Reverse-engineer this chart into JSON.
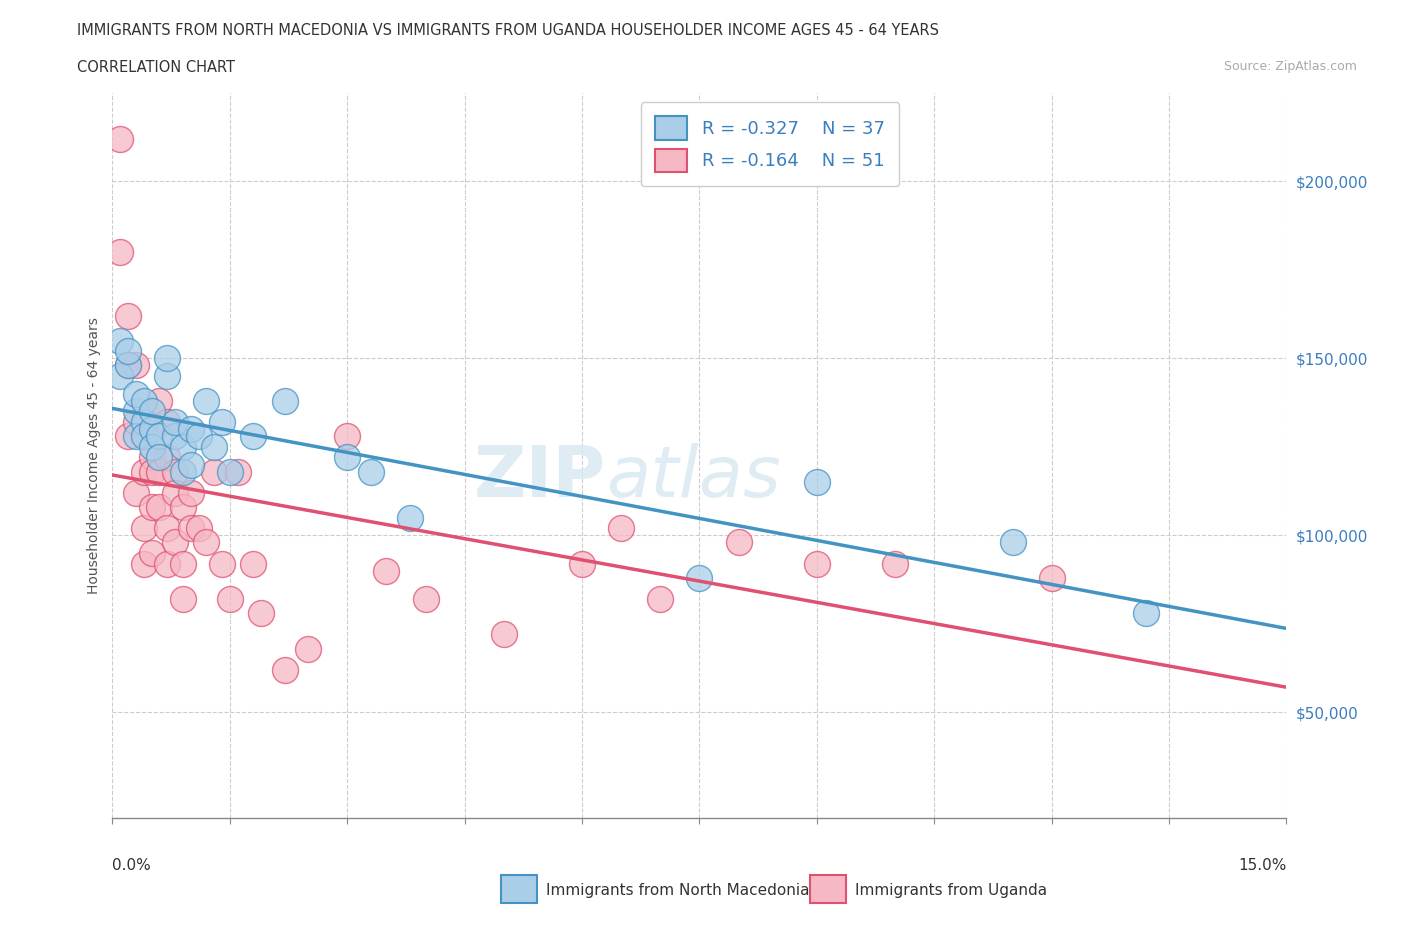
{
  "title_line1": "IMMIGRANTS FROM NORTH MACEDONIA VS IMMIGRANTS FROM UGANDA HOUSEHOLDER INCOME AGES 45 - 64 YEARS",
  "title_line2": "CORRELATION CHART",
  "source_text": "Source: ZipAtlas.com",
  "ylabel": "Householder Income Ages 45 - 64 years",
  "xlim": [
    0,
    0.15
  ],
  "ylim": [
    20000,
    225000
  ],
  "yticks": [
    50000,
    100000,
    150000,
    200000
  ],
  "ytick_labels": [
    "$50,000",
    "$100,000",
    "$150,000",
    "$200,000"
  ],
  "xticks": [
    0.0,
    0.015,
    0.03,
    0.045,
    0.06,
    0.075,
    0.09,
    0.105,
    0.12,
    0.135,
    0.15
  ],
  "color_blue": "#aacde8",
  "color_pink": "#f5b8c4",
  "line_blue": "#4393C3",
  "line_pink": "#E05070",
  "grid_color": "#cccccc",
  "watermark_zip": "ZIP",
  "watermark_atlas": "atlas",
  "blue_x": [
    0.001,
    0.001,
    0.002,
    0.002,
    0.003,
    0.003,
    0.003,
    0.004,
    0.004,
    0.004,
    0.005,
    0.005,
    0.005,
    0.006,
    0.006,
    0.007,
    0.007,
    0.008,
    0.008,
    0.009,
    0.009,
    0.01,
    0.01,
    0.011,
    0.012,
    0.013,
    0.014,
    0.015,
    0.018,
    0.022,
    0.03,
    0.033,
    0.038,
    0.075,
    0.09,
    0.115,
    0.132
  ],
  "blue_y": [
    145000,
    155000,
    148000,
    152000,
    135000,
    140000,
    128000,
    132000,
    138000,
    128000,
    130000,
    125000,
    135000,
    128000,
    122000,
    145000,
    150000,
    128000,
    132000,
    125000,
    118000,
    130000,
    120000,
    128000,
    138000,
    125000,
    132000,
    118000,
    128000,
    138000,
    122000,
    118000,
    105000,
    88000,
    115000,
    98000,
    78000
  ],
  "pink_x": [
    0.001,
    0.001,
    0.002,
    0.002,
    0.002,
    0.003,
    0.003,
    0.003,
    0.004,
    0.004,
    0.004,
    0.005,
    0.005,
    0.005,
    0.005,
    0.006,
    0.006,
    0.006,
    0.007,
    0.007,
    0.007,
    0.007,
    0.008,
    0.008,
    0.008,
    0.009,
    0.009,
    0.009,
    0.01,
    0.01,
    0.011,
    0.012,
    0.013,
    0.014,
    0.015,
    0.016,
    0.018,
    0.019,
    0.022,
    0.025,
    0.03,
    0.035,
    0.04,
    0.05,
    0.06,
    0.065,
    0.07,
    0.08,
    0.09,
    0.1,
    0.12
  ],
  "pink_y": [
    180000,
    212000,
    162000,
    148000,
    128000,
    148000,
    132000,
    112000,
    118000,
    102000,
    92000,
    122000,
    108000,
    118000,
    95000,
    138000,
    118000,
    108000,
    132000,
    122000,
    102000,
    92000,
    118000,
    112000,
    98000,
    108000,
    92000,
    82000,
    102000,
    112000,
    102000,
    98000,
    118000,
    92000,
    82000,
    118000,
    92000,
    78000,
    62000,
    68000,
    128000,
    90000,
    82000,
    72000,
    92000,
    102000,
    82000,
    98000,
    92000,
    92000,
    88000
  ]
}
